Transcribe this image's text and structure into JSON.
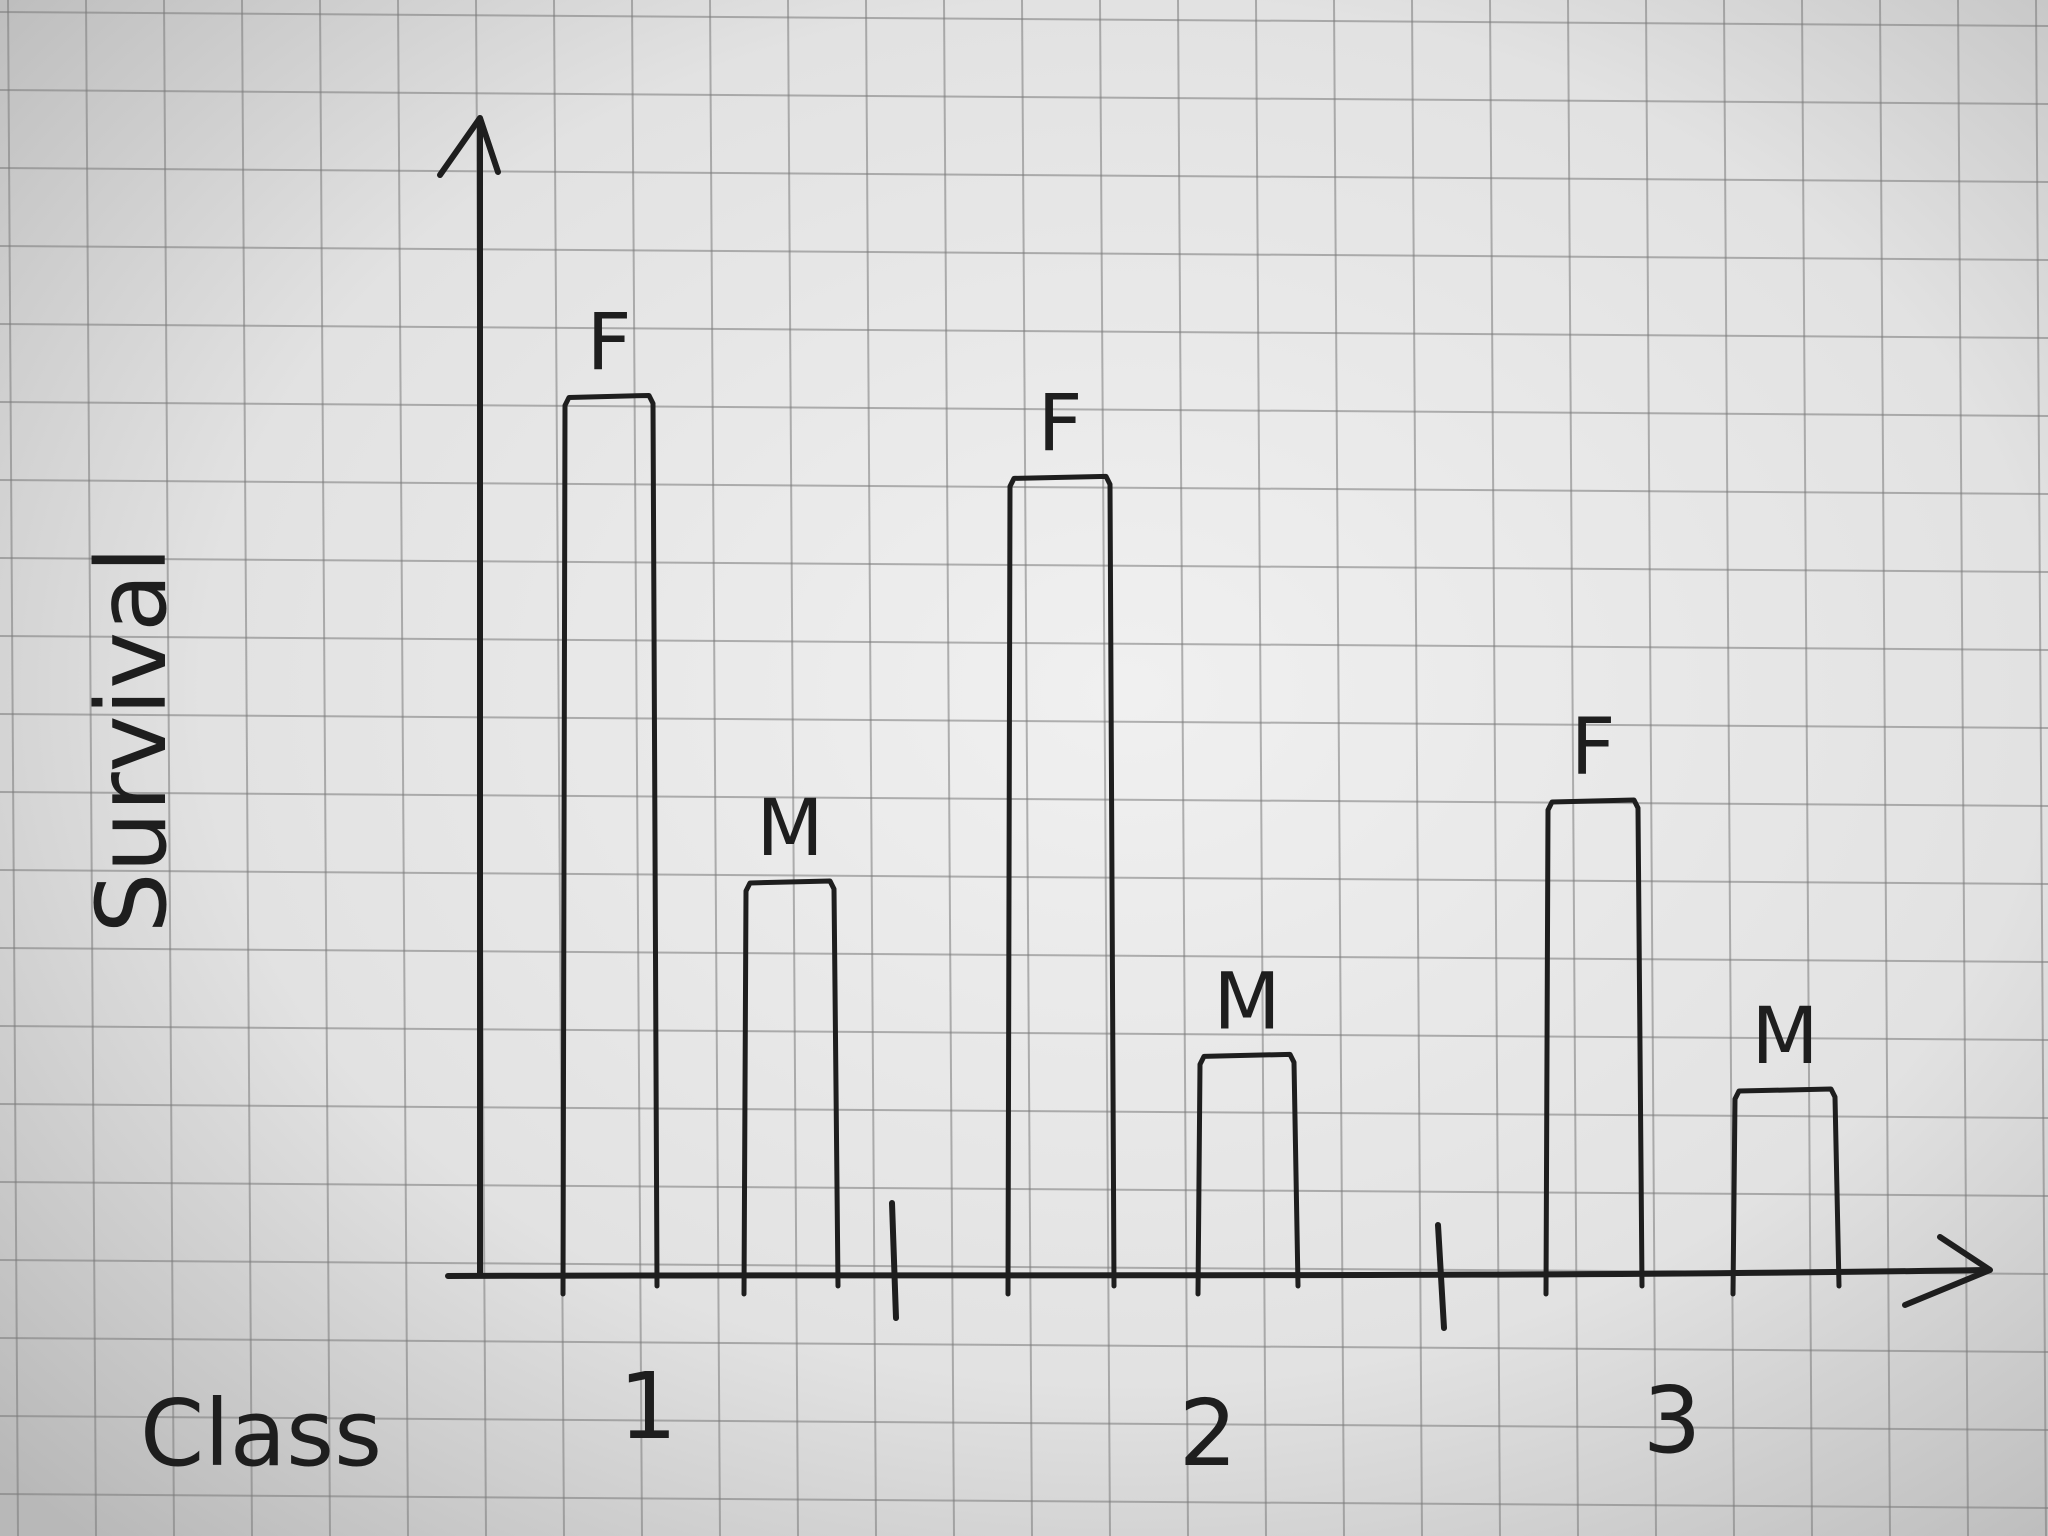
{
  "chart_data": {
    "type": "bar",
    "medium": "hand-drawn on grid paper",
    "xlabel": "Class",
    "ylabel": "Survival",
    "categories": [
      "1",
      "2",
      "3"
    ],
    "series": [
      {
        "name": "F",
        "values": [
          0.76,
          0.69,
          0.41
        ]
      },
      {
        "name": "M",
        "values": [
          0.34,
          0.19,
          0.16
        ]
      }
    ],
    "bar_labels": [
      "F",
      "M",
      "F",
      "M",
      "F",
      "M"
    ],
    "ylim": [
      0,
      1
    ],
    "grid": true,
    "legend": "none",
    "colors": {
      "paper": "#d9d9d9",
      "grid": "#7a7a7a",
      "ink": "#1e1e1e"
    }
  }
}
